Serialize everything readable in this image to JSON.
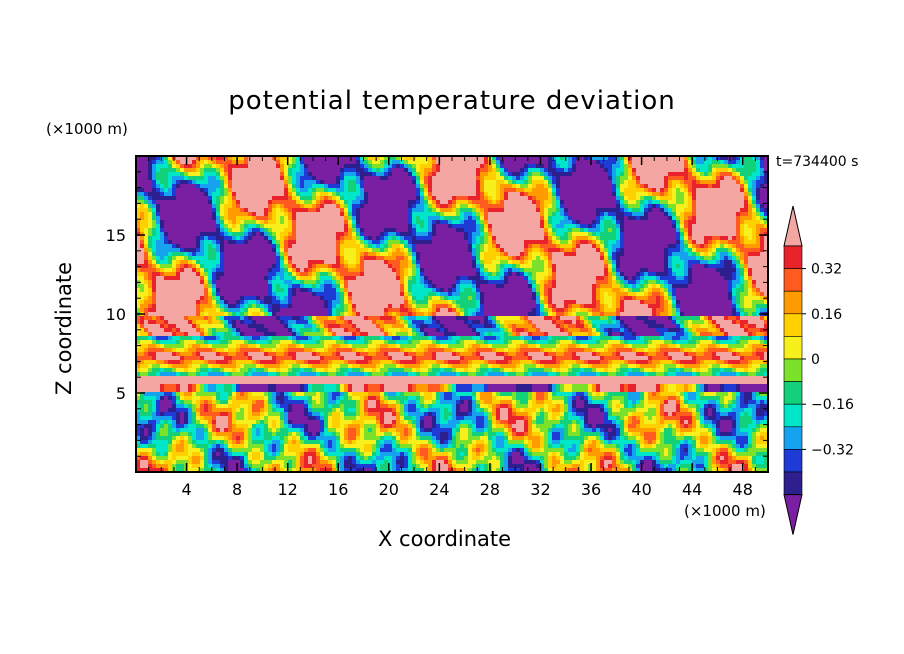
{
  "chart_data": {
    "type": "heatmap",
    "title": "potential temperature deviation",
    "time_label": "t=734400 s",
    "xlabel": "X coordinate",
    "ylabel": "Z coordinate",
    "x_unit": "(×1000 m)",
    "y_unit": "(×1000 m)",
    "xlim": [
      0,
      50
    ],
    "ylim": [
      0,
      20
    ],
    "x_ticks": [
      4,
      8,
      12,
      16,
      20,
      24,
      28,
      32,
      36,
      40,
      44,
      48
    ],
    "y_ticks": [
      5,
      10,
      15
    ],
    "colorbar": {
      "colors": [
        "#7b1fa2",
        "#2e1f8f",
        "#1e3bd6",
        "#16a2ee",
        "#00e6c8",
        "#13d17a",
        "#7be12b",
        "#f7f01c",
        "#ffd000",
        "#ff9a00",
        "#ff5a1f",
        "#e8232b",
        "#f4a6a2"
      ],
      "ticks": [
        "0.32",
        "0.16",
        "0",
        "−0.16",
        "−0.32"
      ],
      "extend": "both"
    }
  }
}
